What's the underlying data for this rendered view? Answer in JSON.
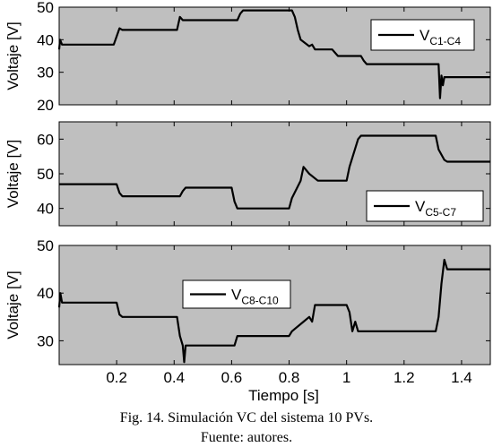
{
  "caption": {
    "line1": "Fig. 14. Simulación VC del sistema 10 PVs.",
    "line2": "Fuente: autores."
  },
  "colors": {
    "plot_bg": "#bfbfbf",
    "line": "#000000",
    "legend_bg": "#ffffff"
  },
  "chart_data": [
    {
      "type": "line",
      "ylabel": "Voltaje [V]",
      "xlim": [
        0,
        1.5
      ],
      "ylim": [
        20,
        50
      ],
      "yticks": [
        20,
        30,
        40,
        50
      ],
      "grid": false,
      "legend_position": "top-right",
      "series": [
        {
          "name_main": "V",
          "name_sub": "C1-C4",
          "x": [
            0,
            0.003,
            0.01,
            0.19,
            0.2,
            0.21,
            0.22,
            0.41,
            0.42,
            0.43,
            0.62,
            0.63,
            0.64,
            0.65,
            0.81,
            0.82,
            0.83,
            0.84,
            0.87,
            0.88,
            0.89,
            0.95,
            0.96,
            0.97,
            1.05,
            1.06,
            1.07,
            1.32,
            1.325,
            1.33,
            1.335,
            1.34,
            1.5
          ],
          "y": [
            37,
            40,
            38.5,
            38.5,
            41,
            43.5,
            43,
            43,
            47,
            46,
            46,
            48,
            49,
            49,
            49,
            47,
            43,
            40,
            38,
            38.5,
            37,
            37,
            36,
            35,
            35,
            33.5,
            32.5,
            32.5,
            22,
            29,
            26,
            28.5,
            28.5
          ]
        }
      ]
    },
    {
      "type": "line",
      "ylabel": "Voltaje [V]",
      "xlim": [
        0,
        1.5
      ],
      "ylim": [
        35,
        65
      ],
      "yticks": [
        40,
        50,
        60
      ],
      "grid": false,
      "legend_position": "bottom-right",
      "series": [
        {
          "name_main": "V",
          "name_sub": "C5-C7",
          "x": [
            0,
            0.2,
            0.21,
            0.22,
            0.42,
            0.43,
            0.44,
            0.6,
            0.61,
            0.62,
            0.8,
            0.81,
            0.84,
            0.85,
            0.87,
            0.9,
            1.0,
            1.01,
            1.04,
            1.05,
            1.31,
            1.32,
            1.34,
            1.35,
            1.5
          ],
          "y": [
            47,
            47,
            44.5,
            43.5,
            43.5,
            45,
            46,
            46,
            42,
            40,
            40,
            43,
            48,
            52,
            50,
            48,
            48,
            52,
            60,
            61,
            61,
            57,
            54,
            53.5,
            53.5
          ]
        }
      ]
    },
    {
      "type": "line",
      "ylabel": "Voltaje [V]",
      "xlabel": "Tiempo [s]",
      "xlim": [
        0,
        1.5
      ],
      "ylim": [
        25,
        50
      ],
      "yticks": [
        30,
        40,
        50
      ],
      "xticks": [
        0.2,
        0.4,
        0.6,
        0.8,
        1,
        1.2,
        1.4
      ],
      "grid": false,
      "legend_position": "top-left",
      "series": [
        {
          "name_main": "V",
          "name_sub": "C8-C10",
          "x": [
            0,
            0.004,
            0.01,
            0.2,
            0.21,
            0.22,
            0.41,
            0.42,
            0.43,
            0.435,
            0.44,
            0.45,
            0.61,
            0.62,
            0.63,
            0.8,
            0.81,
            0.85,
            0.87,
            0.88,
            0.89,
            0.9,
            1.0,
            1.01,
            1.02,
            1.03,
            1.04,
            1.05,
            1.31,
            1.32,
            1.33,
            1.34,
            1.35,
            1.5
          ],
          "y": [
            37,
            40,
            38,
            38,
            35.5,
            35,
            35,
            31,
            29,
            25.5,
            29,
            29,
            29,
            31,
            31,
            31,
            32,
            34,
            35,
            34,
            37.5,
            37.5,
            37.5,
            36,
            32,
            34,
            32,
            32,
            32,
            35,
            42,
            47,
            45,
            45
          ]
        }
      ]
    }
  ]
}
